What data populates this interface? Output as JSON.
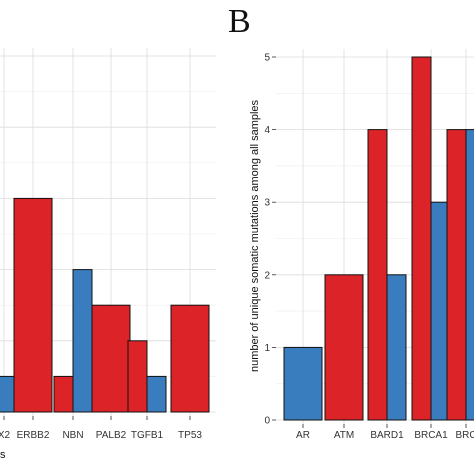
{
  "colors": {
    "red": "#dc2428",
    "blue": "#3a7dbf",
    "panel_bg": "#ffffff"
  },
  "panel_letter": "B",
  "chart_data": [
    {
      "panel": "left (partial)",
      "type": "bar",
      "xlabel_fragment": "s",
      "categories": [
        "X2",
        "ERBB2",
        "NBN",
        "PALB2",
        "TGFB1",
        "TP53"
      ],
      "series": [
        {
          "color": "red",
          "values": [
            null,
            3,
            0.5,
            1.5,
            1,
            1.5
          ]
        },
        {
          "color": "blue",
          "values": [
            0.5,
            null,
            2,
            null,
            0.5,
            null
          ]
        }
      ],
      "ylim": [
        0,
        5
      ],
      "grid": true
    },
    {
      "panel": "B",
      "type": "bar",
      "ylabel": "number of unique somatic mutations among all samples",
      "categories": [
        "AR",
        "ATM",
        "BARD1",
        "BRCA1",
        "BRC"
      ],
      "series": [
        {
          "color": "red",
          "values": [
            null,
            2,
            4,
            5,
            4
          ]
        },
        {
          "color": "blue",
          "values": [
            1,
            null,
            2,
            3,
            4
          ]
        }
      ],
      "ylim": [
        0,
        5
      ],
      "yticks": [
        0,
        1,
        2,
        3,
        4,
        5
      ],
      "grid": true
    }
  ]
}
